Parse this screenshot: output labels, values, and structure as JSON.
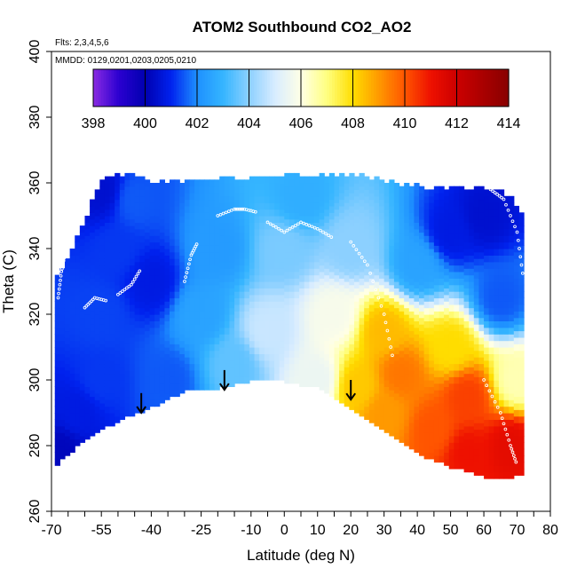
{
  "chart_data": {
    "type": "heatmap",
    "title": "ATOM2 Southbound CO2_AO2",
    "flights_note": "Flts: 2,3,4,5,6",
    "dates_note": "MMDD: 0129,0201,0203,0205,0210",
    "xlabel": "Latitude (deg N)",
    "ylabel": "Theta (C)",
    "xlim": [
      -70,
      80
    ],
    "ylim": [
      260,
      400
    ],
    "x_ticks": [
      "-70",
      "-55",
      "-40",
      "-25",
      "-10",
      "0",
      "10",
      "20",
      "30",
      "40",
      "50",
      "60",
      "70",
      "80"
    ],
    "y_ticks": [
      "260",
      "280",
      "300",
      "320",
      "340",
      "360",
      "380",
      "400"
    ],
    "colorbar": {
      "range": [
        398,
        414
      ],
      "ticks": [
        "398",
        "400",
        "402",
        "404",
        "406",
        "408",
        "410",
        "412",
        "414"
      ],
      "stops": [
        {
          "v": 398,
          "c": "#8a2be2"
        },
        {
          "v": 399,
          "c": "#2a00d0"
        },
        {
          "v": 400,
          "c": "#0000b0"
        },
        {
          "v": 401,
          "c": "#0022ee"
        },
        {
          "v": 402,
          "c": "#1e90ff"
        },
        {
          "v": 403,
          "c": "#35b5ff"
        },
        {
          "v": 404,
          "c": "#8cd0ff"
        },
        {
          "v": 405,
          "c": "#d8ecff"
        },
        {
          "v": 406,
          "c": "#ffffe6"
        },
        {
          "v": 407,
          "c": "#ffff80"
        },
        {
          "v": 408,
          "c": "#ffdd00"
        },
        {
          "v": 409,
          "c": "#ff9900"
        },
        {
          "v": 410,
          "c": "#ff5500"
        },
        {
          "v": 411,
          "c": "#ee1100"
        },
        {
          "v": 412,
          "c": "#cc0000"
        },
        {
          "v": 414,
          "c": "#880000"
        }
      ]
    },
    "domain": {
      "bottom_boundary": [
        [
          -69,
          274
        ],
        [
          -60,
          282
        ],
        [
          -50,
          288
        ],
        [
          -40,
          292
        ],
        [
          -30,
          297
        ],
        [
          -20,
          298
        ],
        [
          -10,
          300
        ],
        [
          0,
          300
        ],
        [
          10,
          298
        ],
        [
          20,
          292
        ],
        [
          30,
          285
        ],
        [
          40,
          278
        ],
        [
          50,
          274
        ],
        [
          60,
          271
        ],
        [
          66,
          270
        ],
        [
          72,
          272
        ]
      ],
      "top_boundary": [
        [
          -69,
          330
        ],
        [
          -65,
          336
        ],
        [
          -60,
          348
        ],
        [
          -55,
          360
        ],
        [
          -50,
          362
        ],
        [
          -40,
          360
        ],
        [
          -20,
          360
        ],
        [
          0,
          362
        ],
        [
          20,
          362
        ],
        [
          40,
          358
        ],
        [
          55,
          358
        ],
        [
          65,
          358
        ],
        [
          72,
          350
        ]
      ]
    },
    "control_points": [
      {
        "lat": -67,
        "theta": 278,
        "co2": 400.2
      },
      {
        "lat": -62,
        "theta": 290,
        "co2": 400.8
      },
      {
        "lat": -55,
        "theta": 300,
        "co2": 401.2
      },
      {
        "lat": -55,
        "theta": 320,
        "co2": 401.3
      },
      {
        "lat": -50,
        "theta": 340,
        "co2": 401.2
      },
      {
        "lat": -45,
        "theta": 355,
        "co2": 401.5
      },
      {
        "lat": -40,
        "theta": 330,
        "co2": 400.8
      },
      {
        "lat": -35,
        "theta": 300,
        "co2": 401.5
      },
      {
        "lat": -25,
        "theta": 320,
        "co2": 402.5
      },
      {
        "lat": -20,
        "theta": 340,
        "co2": 402.3
      },
      {
        "lat": -15,
        "theta": 305,
        "co2": 403.5
      },
      {
        "lat": -5,
        "theta": 315,
        "co2": 404.8
      },
      {
        "lat": 0,
        "theta": 340,
        "co2": 403.8
      },
      {
        "lat": 5,
        "theta": 355,
        "co2": 402.8
      },
      {
        "lat": 10,
        "theta": 300,
        "co2": 405.5
      },
      {
        "lat": 15,
        "theta": 320,
        "co2": 405.8
      },
      {
        "lat": 20,
        "theta": 340,
        "co2": 404.0
      },
      {
        "lat": 22,
        "theta": 298,
        "co2": 408.3
      },
      {
        "lat": 30,
        "theta": 290,
        "co2": 409.0
      },
      {
        "lat": 30,
        "theta": 315,
        "co2": 408.5
      },
      {
        "lat": 35,
        "theta": 302,
        "co2": 409.5
      },
      {
        "lat": 40,
        "theta": 335,
        "co2": 402.5
      },
      {
        "lat": 45,
        "theta": 285,
        "co2": 410.0
      },
      {
        "lat": 50,
        "theta": 310,
        "co2": 408.0
      },
      {
        "lat": 55,
        "theta": 278,
        "co2": 411.0
      },
      {
        "lat": 55,
        "theta": 295,
        "co2": 410.3
      },
      {
        "lat": 60,
        "theta": 350,
        "co2": 400.5
      },
      {
        "lat": 65,
        "theta": 325,
        "co2": 401.5
      },
      {
        "lat": 68,
        "theta": 280,
        "co2": 411.3
      },
      {
        "lat": 70,
        "theta": 300,
        "co2": 406.5
      },
      {
        "lat": 50,
        "theta": 345,
        "co2": 400.8
      },
      {
        "lat": -55,
        "theta": 358,
        "co2": 400.5
      }
    ],
    "profile_tracks": [
      [
        [
          -68,
          325
        ],
        [
          -67,
          333
        ],
        [
          -66,
          338
        ]
      ],
      [
        [
          -60,
          322
        ],
        [
          -57,
          325
        ],
        [
          -53,
          324
        ]
      ],
      [
        [
          -50,
          326
        ],
        [
          -46,
          329
        ],
        [
          -43,
          334
        ]
      ],
      [
        [
          -30,
          330
        ],
        [
          -28,
          338
        ],
        [
          -26,
          342
        ]
      ],
      [
        [
          -20,
          350
        ],
        [
          -15,
          352
        ],
        [
          -12,
          352
        ],
        [
          -8,
          351
        ]
      ],
      [
        [
          -5,
          348
        ],
        [
          0,
          345
        ],
        [
          5,
          348
        ],
        [
          10,
          346
        ],
        [
          15,
          343
        ]
      ],
      [
        [
          20,
          342
        ],
        [
          25,
          335
        ],
        [
          30,
          320
        ],
        [
          33,
          305
        ]
      ],
      [
        [
          62,
          358
        ],
        [
          66,
          355
        ],
        [
          70,
          345
        ],
        [
          72,
          330
        ]
      ],
      [
        [
          60,
          300
        ],
        [
          65,
          290
        ],
        [
          68,
          280
        ],
        [
          70,
          274
        ]
      ]
    ],
    "arrows": [
      {
        "lat": -43,
        "theta_top": 296,
        "theta_bottom": 290
      },
      {
        "lat": -18,
        "theta_top": 303,
        "theta_bottom": 297
      },
      {
        "lat": 20,
        "theta_top": 300,
        "theta_bottom": 294
      }
    ]
  }
}
